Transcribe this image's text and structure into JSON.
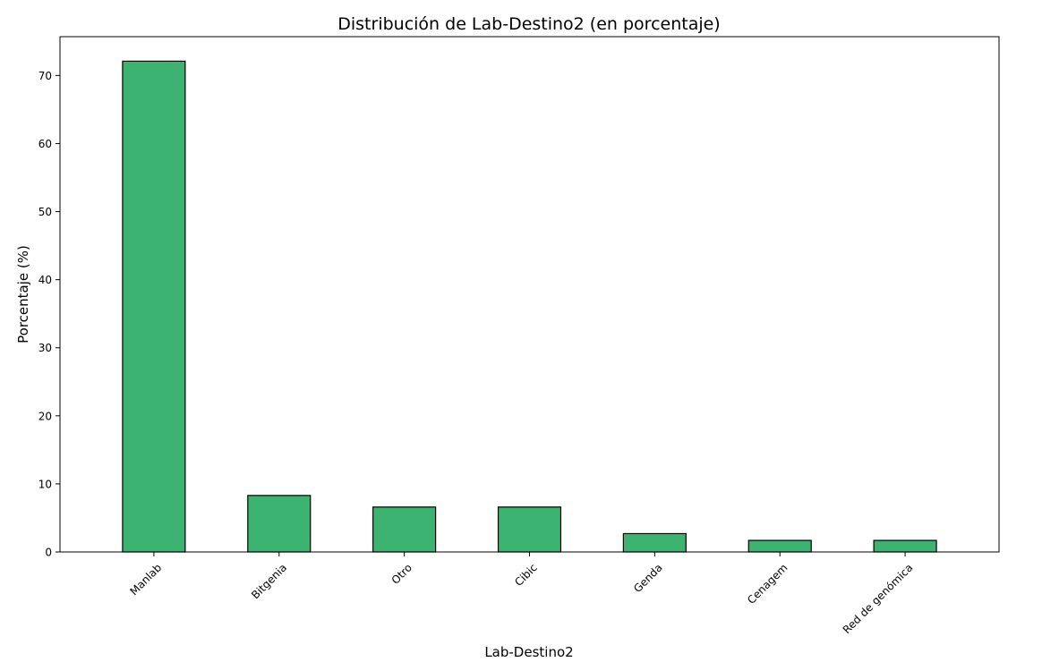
{
  "chart_data": {
    "type": "bar",
    "title": "Distribución de Lab-Destino2 (en porcentaje)",
    "xlabel": "Lab-Destino2",
    "ylabel": "Porcentaje (%)",
    "categories": [
      "Manlab",
      "Bitgenia",
      "Otro",
      "Cibic",
      "Genda",
      "Cenagem",
      "Red de genómica"
    ],
    "values": [
      72.1,
      8.3,
      6.6,
      6.6,
      2.7,
      1.7,
      1.7
    ],
    "ylim": [
      0,
      75.7
    ],
    "yticks": [
      0,
      10,
      20,
      30,
      40,
      50,
      60,
      70
    ],
    "grid": false,
    "legend": "none",
    "colors": {
      "bar_fill": "#3cb371",
      "bar_edge": "#000000"
    }
  }
}
